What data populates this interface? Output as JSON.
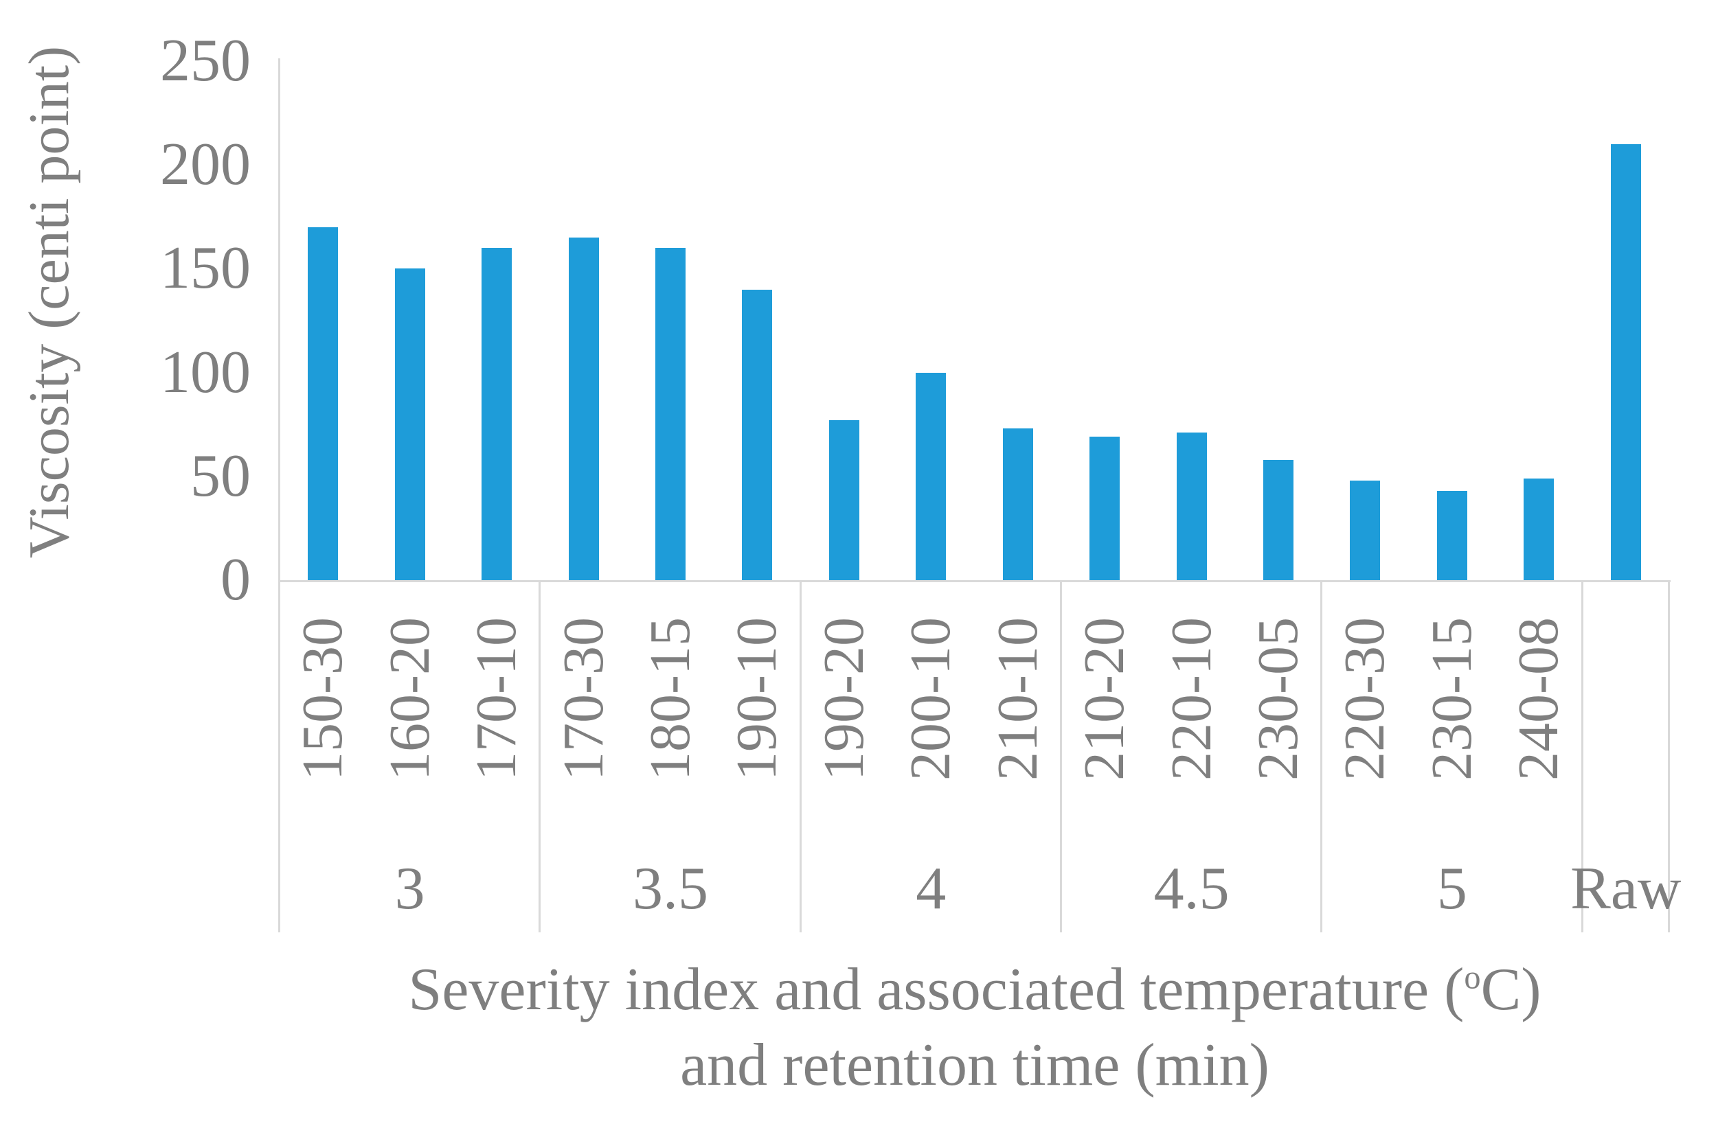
{
  "chart_data": {
    "type": "bar",
    "title": "",
    "ylabel": "Viscosity (centi point)",
    "xlabel_line1_prefix": "Severity index and associated temperature (",
    "xlabel_superscript": "o",
    "xlabel_line1_suffix": "C)",
    "xlabel_line2": "and retention time (min)",
    "categories": [
      "150-30",
      "160-20",
      "170-10",
      "170-30",
      "180-15",
      "190-10",
      "190-20",
      "200-10",
      "210-10",
      "210-20",
      "220-10",
      "230-05",
      "220-30",
      "230-15",
      "240-08",
      ""
    ],
    "values": [
      170,
      150,
      160,
      165,
      160,
      140,
      77,
      100,
      73,
      69,
      71,
      58,
      48,
      43,
      49,
      210
    ],
    "group_labels": [
      "3",
      "3.5",
      "4",
      "4.5",
      "5",
      "Raw"
    ],
    "group_sizes": [
      3,
      3,
      3,
      3,
      3,
      1
    ],
    "yticks": [
      0,
      50,
      100,
      150,
      200,
      250
    ],
    "ylim": [
      0,
      250
    ],
    "grid": false,
    "legend": "none",
    "bar_color": "#1e9cd9",
    "axis_color": "#d9d9d9",
    "text_color": "#7f7f7f"
  }
}
